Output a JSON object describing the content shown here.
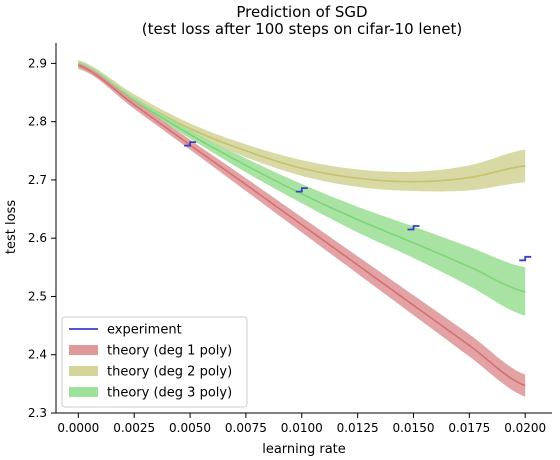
{
  "chart_data": {
    "type": "line",
    "title": "Prediction of SGD",
    "subtitle": "(test loss after 100 steps on cifar-10 lenet)",
    "xlabel": "learning rate",
    "ylabel": "test loss",
    "xlim": [
      -0.001,
      0.0212
    ],
    "ylim": [
      2.3,
      2.935
    ],
    "xticks": [
      0.0,
      0.0025,
      0.005,
      0.0075,
      0.01,
      0.0125,
      0.015,
      0.0175,
      0.02
    ],
    "xtick_labels": [
      "0.0000",
      "0.0025",
      "0.0050",
      "0.0075",
      "0.0100",
      "0.0125",
      "0.0150",
      "0.0175",
      "0.0200"
    ],
    "yticks": [
      2.3,
      2.4,
      2.5,
      2.6,
      2.7,
      2.8,
      2.9
    ],
    "ytick_labels": [
      "2.3",
      "2.4",
      "2.5",
      "2.6",
      "2.7",
      "2.8",
      "2.9"
    ],
    "grid": false,
    "legend_position": "lower-left",
    "colors": {
      "experiment": "#3a3fc8",
      "deg1_band": "#e0999b",
      "deg1_line": "#d46f72",
      "deg2_band": "#d4d59b",
      "deg2_line": "#c3c46c",
      "deg3_band": "#9fe09a",
      "deg3_line": "#7dd477"
    },
    "series": [
      {
        "name": "theory (deg 2 poly)",
        "kind": "band",
        "x": [
          0.0,
          0.0025,
          0.005,
          0.0075,
          0.01,
          0.0125,
          0.015,
          0.0175,
          0.02
        ],
        "mean": [
          2.9,
          2.839,
          2.788,
          2.75,
          2.72,
          2.703,
          2.697,
          2.704,
          2.724
        ],
        "lower": [
          2.89,
          2.832,
          2.781,
          2.739,
          2.707,
          2.688,
          2.681,
          2.682,
          2.696
        ],
        "upper": [
          2.906,
          2.847,
          2.797,
          2.761,
          2.734,
          2.718,
          2.714,
          2.725,
          2.752
        ]
      },
      {
        "name": "theory (deg 3 poly)",
        "kind": "band",
        "x": [
          0.0,
          0.0025,
          0.005,
          0.0075,
          0.01,
          0.0125,
          0.015,
          0.0175,
          0.02
        ],
        "mean": [
          2.898,
          2.836,
          2.778,
          2.725,
          2.676,
          2.632,
          2.592,
          2.551,
          2.508
        ],
        "lower": [
          2.892,
          2.831,
          2.771,
          2.713,
          2.66,
          2.61,
          2.566,
          2.518,
          2.467
        ],
        "upper": [
          2.904,
          2.842,
          2.785,
          2.737,
          2.693,
          2.654,
          2.62,
          2.585,
          2.55
        ]
      },
      {
        "name": "theory (deg 1 poly)",
        "kind": "band",
        "x": [
          0.0,
          0.0025,
          0.005,
          0.0075,
          0.01,
          0.0125,
          0.015,
          0.0175,
          0.02
        ],
        "mean": [
          2.897,
          2.829,
          2.76,
          2.692,
          2.623,
          2.554,
          2.485,
          2.416,
          2.347
        ],
        "lower": [
          2.893,
          2.822,
          2.752,
          2.681,
          2.61,
          2.539,
          2.468,
          2.397,
          2.328
        ],
        "upper": [
          2.901,
          2.836,
          2.769,
          2.703,
          2.636,
          2.569,
          2.502,
          2.435,
          2.366
        ]
      },
      {
        "name": "experiment",
        "kind": "steps",
        "points": [
          {
            "x": 0.005,
            "y_left": 2.759,
            "y_right": 2.765
          },
          {
            "x": 0.01,
            "y_left": 2.68,
            "y_right": 2.686
          },
          {
            "x": 0.015,
            "y_left": 2.615,
            "y_right": 2.621
          },
          {
            "x": 0.02,
            "y_left": 2.562,
            "y_right": 2.568
          }
        ]
      }
    ],
    "legend": [
      "experiment",
      "theory (deg 1 poly)",
      "theory (deg 2 poly)",
      "theory (deg 3 poly)"
    ]
  }
}
